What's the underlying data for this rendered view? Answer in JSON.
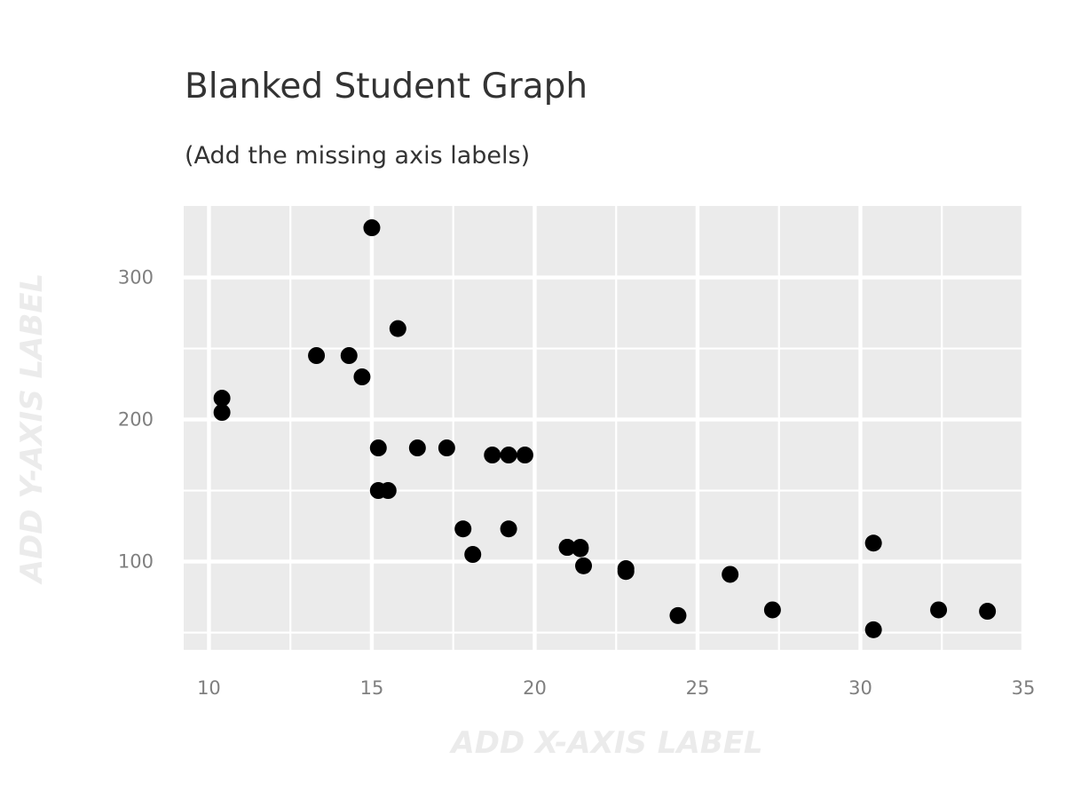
{
  "chart_data": {
    "type": "scatter",
    "title": "Blanked Student Graph",
    "subtitle": "(Add the missing axis labels)",
    "xlabel": "ADD X-AXIS LABEL",
    "ylabel": "ADD Y-AXIS LABEL",
    "xlim": [
      9.225,
      35
    ],
    "ylim": [
      37.85,
      350.35
    ],
    "x_ticks": [
      10,
      15,
      20,
      25,
      30,
      35
    ],
    "y_ticks": [
      100,
      200,
      300
    ],
    "x_minor_ticks": [
      12.5,
      17.5,
      22.5,
      27.5,
      32.5
    ],
    "y_minor_ticks": [
      50,
      150,
      250
    ],
    "grid": true,
    "colors": {
      "panel": "#ebebeb",
      "grid": "#ffffff",
      "point": "#000000"
    },
    "points": [
      {
        "x": 21.0,
        "y": 110
      },
      {
        "x": 21.0,
        "y": 110
      },
      {
        "x": 22.8,
        "y": 93
      },
      {
        "x": 21.4,
        "y": 110
      },
      {
        "x": 18.7,
        "y": 175
      },
      {
        "x": 18.1,
        "y": 105
      },
      {
        "x": 14.3,
        "y": 245
      },
      {
        "x": 24.4,
        "y": 62
      },
      {
        "x": 22.8,
        "y": 95
      },
      {
        "x": 19.2,
        "y": 123
      },
      {
        "x": 17.8,
        "y": 123
      },
      {
        "x": 16.4,
        "y": 180
      },
      {
        "x": 17.3,
        "y": 180
      },
      {
        "x": 15.2,
        "y": 180
      },
      {
        "x": 10.4,
        "y": 205
      },
      {
        "x": 10.4,
        "y": 215
      },
      {
        "x": 14.7,
        "y": 230
      },
      {
        "x": 32.4,
        "y": 66
      },
      {
        "x": 30.4,
        "y": 52
      },
      {
        "x": 33.9,
        "y": 65
      },
      {
        "x": 21.5,
        "y": 97
      },
      {
        "x": 15.5,
        "y": 150
      },
      {
        "x": 15.2,
        "y": 150
      },
      {
        "x": 13.3,
        "y": 245
      },
      {
        "x": 19.2,
        "y": 175
      },
      {
        "x": 27.3,
        "y": 66
      },
      {
        "x": 26.0,
        "y": 91
      },
      {
        "x": 30.4,
        "y": 113
      },
      {
        "x": 15.8,
        "y": 264
      },
      {
        "x": 19.7,
        "y": 175
      },
      {
        "x": 15.0,
        "y": 335
      },
      {
        "x": 21.4,
        "y": 109
      }
    ]
  }
}
